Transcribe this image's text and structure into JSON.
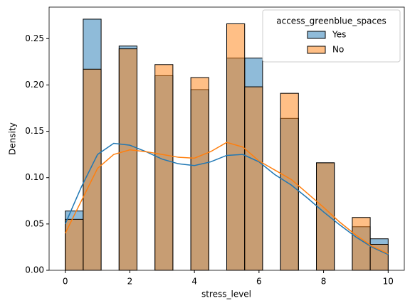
{
  "chart_data": {
    "type": "histogram",
    "xlabel": "stress_level",
    "ylabel": "Density",
    "bins": [
      0,
      0.556,
      1.111,
      1.667,
      2.222,
      2.778,
      3.333,
      3.889,
      4.444,
      5.0,
      5.556,
      6.111,
      6.667,
      7.222,
      7.778,
      8.333,
      8.889,
      9.444,
      10
    ],
    "legend_title": "access_greenblue_spaces",
    "legend": "upper right",
    "series": [
      {
        "name": "Yes",
        "color": "#1f77b4",
        "values": [
          0.064,
          0.271,
          0,
          0.242,
          0,
          0.21,
          0,
          0.195,
          0,
          0.229,
          0.229,
          0,
          0.164,
          0,
          0.116,
          0,
          0.047,
          0.034
        ],
        "kde": [
          0.05,
          0.09,
          0.125,
          0.137,
          0.135,
          0.128,
          0.12,
          0.115,
          0.113,
          0.117,
          0.124,
          0.125,
          0.117,
          0.103,
          0.092,
          0.078,
          0.063,
          0.049,
          0.036,
          0.025,
          0.017
        ]
      },
      {
        "name": "No",
        "color": "#ff7f0e",
        "values": [
          0.055,
          0.217,
          0,
          0.239,
          0,
          0.222,
          0,
          0.208,
          0,
          0.266,
          0.198,
          0,
          0.191,
          0,
          0.116,
          0,
          0.057,
          0.028
        ],
        "kde": [
          0.04,
          0.075,
          0.11,
          0.125,
          0.13,
          0.128,
          0.125,
          0.122,
          0.121,
          0.128,
          0.138,
          0.133,
          0.118,
          0.108,
          0.098,
          0.083,
          0.068,
          0.052,
          0.038,
          0.026,
          0.018
        ]
      }
    ],
    "kde_x": [
      0,
      0.5,
      1,
      1.5,
      2,
      2.5,
      3,
      3.5,
      4,
      4.5,
      5,
      5.5,
      6,
      6.5,
      7,
      7.5,
      8,
      8.5,
      9,
      9.5,
      10
    ],
    "xlim": [
      -0.5,
      10.5
    ],
    "xticks": [
      0,
      2,
      4,
      6,
      8,
      10
    ],
    "ylim": [
      0,
      0.284
    ],
    "yticks": [
      {
        "value": 0,
        "label": "0.00"
      },
      {
        "value": 0.05,
        "label": "0.05"
      },
      {
        "value": 0.1,
        "label": "0.10"
      },
      {
        "value": 0.15,
        "label": "0.15"
      },
      {
        "value": 0.2,
        "label": "0.20"
      },
      {
        "value": 0.25,
        "label": "0.25"
      }
    ]
  }
}
